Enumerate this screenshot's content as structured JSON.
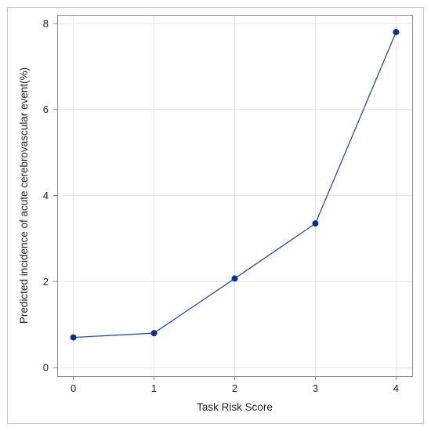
{
  "chart_data": {
    "type": "line",
    "title": "",
    "xlabel": "Task Risk Score",
    "ylabel": "Predicted incidence of acute cerebrovascular event(%)",
    "x": [
      0,
      1,
      2,
      3,
      4
    ],
    "series": [
      {
        "values": [
          0.7,
          0.8,
          2.07,
          3.35,
          7.8
        ]
      }
    ],
    "xlim": [
      -0.2,
      4.2
    ],
    "ylim": [
      -0.2,
      8.2
    ],
    "x_ticks": [
      "0",
      "1",
      "2",
      "3",
      "4"
    ],
    "y_ticks": [
      "0",
      "2",
      "4",
      "6",
      "8"
    ],
    "grid": true,
    "legend": "none",
    "colors": {
      "line": "#2a4e95",
      "marker": "#0b2f8a",
      "grid": "#e6e6e6",
      "frame": "#8c8c8c"
    }
  }
}
